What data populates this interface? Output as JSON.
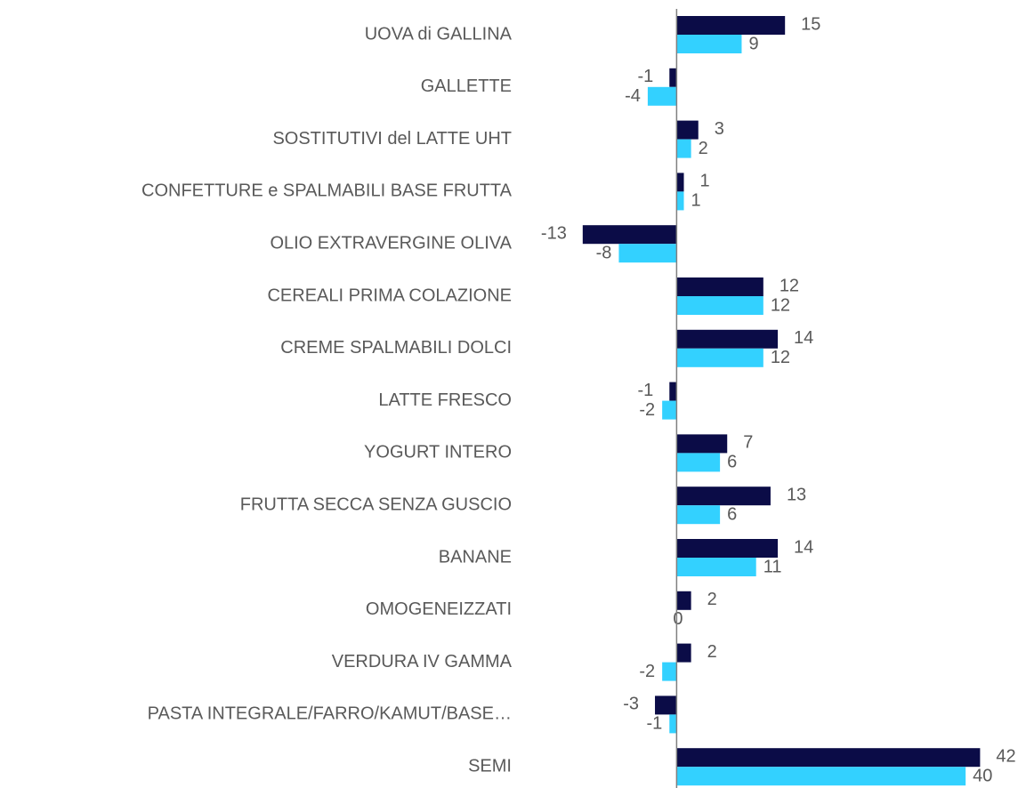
{
  "chart_data": {
    "type": "bar",
    "orientation": "horizontal",
    "categories": [
      "UOVA di GALLINA",
      "GALLETTE",
      "SOSTITUTIVI del LATTE UHT",
      "CONFETTURE e SPALMABILI BASE FRUTTA",
      "OLIO EXTRAVERGINE OLIVA",
      "CEREALI PRIMA COLAZIONE",
      "CREME SPALMABILI DOLCI",
      "LATTE FRESCO",
      "YOGURT INTERO",
      "FRUTTA SECCA SENZA GUSCIO",
      "BANANE",
      "OMOGENEIZZATI",
      "VERDURA IV GAMMA",
      "PASTA INTEGRALE/FARRO/KAMUT/BASE…",
      "SEMI"
    ],
    "series": [
      {
        "color": "#0b0c47",
        "values": [
          15,
          -1,
          3,
          1,
          -13,
          12,
          14,
          -1,
          7,
          13,
          14,
          2,
          2,
          -3,
          42
        ]
      },
      {
        "color": "#33d1ff",
        "values": [
          9,
          -4,
          2,
          1,
          -8,
          12,
          12,
          -2,
          6,
          6,
          11,
          0,
          -2,
          -1,
          40
        ]
      }
    ],
    "xlim": [
      -20,
      47
    ]
  }
}
